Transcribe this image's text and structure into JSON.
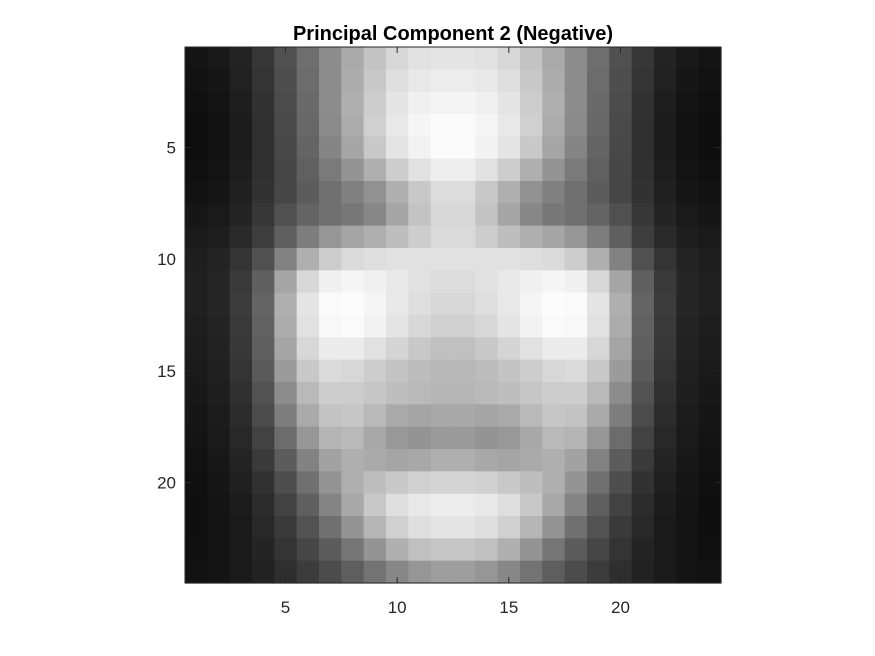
{
  "chart_data": {
    "type": "heatmap",
    "title": "Principal Component 2 (Negative)",
    "xlabel": "",
    "ylabel": "",
    "colormap": "gray",
    "y_reversed": true,
    "xlim": [
      0.5,
      24.5
    ],
    "ylim": [
      0.5,
      24.5
    ],
    "xticks": [
      5,
      10,
      15,
      20
    ],
    "yticks": [
      5,
      10,
      15,
      20
    ],
    "rows": 24,
    "cols": 24,
    "values": [
      [
        20,
        25,
        35,
        55,
        80,
        110,
        140,
        170,
        195,
        215,
        225,
        228,
        228,
        225,
        215,
        195,
        170,
        140,
        110,
        80,
        55,
        35,
        25,
        20
      ],
      [
        18,
        22,
        33,
        52,
        78,
        108,
        140,
        172,
        200,
        222,
        232,
        236,
        236,
        232,
        222,
        200,
        172,
        140,
        108,
        78,
        52,
        33,
        22,
        18
      ],
      [
        16,
        20,
        30,
        50,
        76,
        106,
        140,
        175,
        205,
        228,
        240,
        244,
        244,
        240,
        228,
        205,
        175,
        140,
        106,
        76,
        50,
        30,
        20,
        16
      ],
      [
        14,
        18,
        28,
        48,
        74,
        104,
        138,
        172,
        208,
        232,
        245,
        250,
        250,
        245,
        232,
        208,
        172,
        138,
        104,
        74,
        48,
        28,
        18,
        14
      ],
      [
        14,
        18,
        28,
        48,
        72,
        100,
        132,
        165,
        200,
        228,
        242,
        250,
        250,
        242,
        228,
        200,
        165,
        132,
        100,
        72,
        48,
        28,
        18,
        14
      ],
      [
        16,
        20,
        30,
        48,
        70,
        96,
        122,
        148,
        175,
        205,
        225,
        238,
        238,
        225,
        205,
        175,
        148,
        122,
        96,
        70,
        48,
        30,
        20,
        16
      ],
      [
        18,
        22,
        32,
        50,
        70,
        92,
        112,
        128,
        145,
        175,
        200,
        220,
        220,
        200,
        175,
        145,
        128,
        112,
        92,
        70,
        50,
        32,
        22,
        18
      ],
      [
        22,
        26,
        36,
        55,
        80,
        100,
        112,
        120,
        135,
        165,
        195,
        215,
        215,
        195,
        165,
        135,
        120,
        112,
        100,
        80,
        55,
        36,
        26,
        22
      ],
      [
        26,
        30,
        42,
        62,
        95,
        125,
        150,
        165,
        175,
        190,
        205,
        218,
        218,
        205,
        190,
        175,
        165,
        150,
        125,
        95,
        62,
        42,
        30,
        26
      ],
      [
        30,
        36,
        52,
        80,
        130,
        175,
        205,
        218,
        222,
        225,
        225,
        225,
        225,
        225,
        225,
        222,
        218,
        205,
        175,
        130,
        80,
        52,
        36,
        30
      ],
      [
        32,
        38,
        58,
        95,
        165,
        215,
        240,
        245,
        240,
        232,
        225,
        220,
        220,
        225,
        232,
        240,
        245,
        240,
        215,
        165,
        95,
        58,
        38,
        32
      ],
      [
        32,
        38,
        60,
        100,
        175,
        228,
        250,
        252,
        245,
        232,
        222,
        215,
        215,
        222,
        232,
        245,
        252,
        250,
        228,
        175,
        100,
        60,
        38,
        32
      ],
      [
        30,
        36,
        58,
        98,
        172,
        225,
        248,
        250,
        242,
        228,
        215,
        208,
        208,
        215,
        228,
        242,
        250,
        248,
        225,
        172,
        98,
        58,
        36,
        30
      ],
      [
        28,
        34,
        56,
        95,
        165,
        215,
        235,
        235,
        225,
        212,
        200,
        192,
        192,
        200,
        212,
        225,
        235,
        235,
        215,
        165,
        95,
        56,
        34,
        28
      ],
      [
        26,
        32,
        52,
        90,
        155,
        200,
        218,
        215,
        205,
        195,
        188,
        184,
        184,
        188,
        195,
        205,
        215,
        218,
        200,
        155,
        90,
        52,
        32,
        26
      ],
      [
        24,
        30,
        48,
        82,
        140,
        185,
        205,
        205,
        198,
        190,
        185,
        182,
        182,
        185,
        190,
        198,
        205,
        205,
        185,
        140,
        82,
        48,
        30,
        24
      ],
      [
        22,
        28,
        44,
        75,
        125,
        170,
        195,
        198,
        185,
        170,
        165,
        168,
        168,
        165,
        170,
        185,
        198,
        195,
        170,
        125,
        75,
        44,
        28,
        22
      ],
      [
        20,
        26,
        40,
        66,
        108,
        150,
        180,
        185,
        168,
        152,
        148,
        155,
        155,
        148,
        152,
        168,
        185,
        180,
        150,
        108,
        66,
        40,
        26,
        20
      ],
      [
        18,
        24,
        36,
        58,
        92,
        130,
        162,
        175,
        170,
        165,
        168,
        175,
        175,
        168,
        165,
        170,
        175,
        162,
        130,
        92,
        58,
        36,
        24,
        18
      ],
      [
        16,
        22,
        32,
        50,
        78,
        112,
        148,
        175,
        190,
        200,
        208,
        212,
        212,
        208,
        200,
        190,
        175,
        148,
        112,
        78,
        50,
        32,
        22,
        16
      ],
      [
        15,
        20,
        28,
        44,
        66,
        95,
        132,
        168,
        200,
        222,
        232,
        236,
        236,
        232,
        222,
        200,
        168,
        132,
        95,
        66,
        44,
        28,
        20,
        15
      ],
      [
        15,
        19,
        26,
        40,
        58,
        82,
        112,
        148,
        182,
        208,
        222,
        228,
        228,
        222,
        208,
        182,
        148,
        112,
        82,
        58,
        40,
        26,
        19,
        15
      ],
      [
        16,
        19,
        26,
        36,
        52,
        70,
        92,
        118,
        148,
        175,
        192,
        198,
        198,
        192,
        175,
        148,
        118,
        92,
        70,
        52,
        36,
        26,
        19,
        16
      ],
      [
        18,
        20,
        26,
        34,
        46,
        60,
        76,
        94,
        115,
        135,
        150,
        158,
        158,
        150,
        135,
        115,
        94,
        76,
        60,
        46,
        34,
        26,
        20,
        18
      ]
    ]
  }
}
